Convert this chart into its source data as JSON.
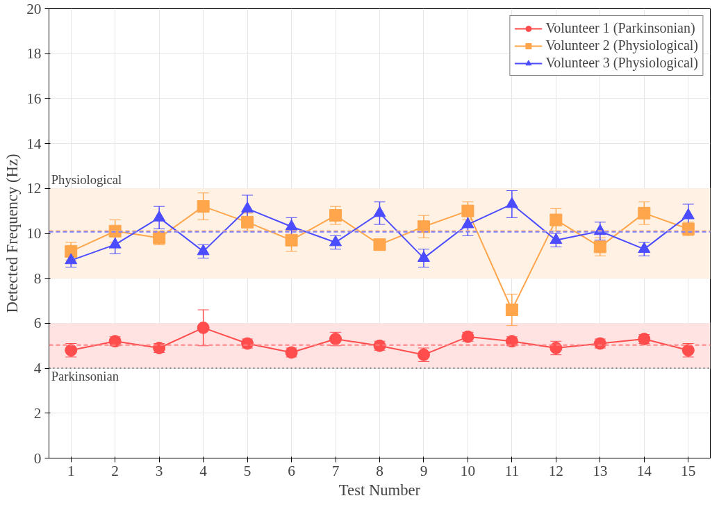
{
  "chart_data": {
    "type": "line",
    "xlabel": "Test Number",
    "ylabel": "Detected Frequency (Hz)",
    "x": [
      1,
      2,
      3,
      4,
      5,
      6,
      7,
      8,
      9,
      10,
      11,
      12,
      13,
      14,
      15
    ],
    "xlim": [
      0.5,
      15.5
    ],
    "xticks": [
      1,
      2,
      3,
      4,
      5,
      6,
      7,
      8,
      9,
      10,
      11,
      12,
      13,
      14,
      15
    ],
    "ylim": [
      0,
      20
    ],
    "yticks": [
      0,
      2,
      4,
      6,
      8,
      10,
      12,
      14,
      16,
      18,
      20
    ],
    "grid": true,
    "legend": "top right",
    "line_style": "solid",
    "series": [
      {
        "name": "Volunteer 1 (Parkinsonian)",
        "color": "#ff4c4c",
        "marker": "circle",
        "values": [
          4.8,
          5.2,
          4.9,
          5.8,
          5.1,
          4.7,
          5.3,
          5.0,
          4.6,
          5.4,
          5.2,
          4.9,
          5.1,
          5.3,
          4.8
        ],
        "errors": [
          0.3,
          0.2,
          0.2,
          0.8,
          0.2,
          0.2,
          0.3,
          0.2,
          0.3,
          0.2,
          0.2,
          0.3,
          0.2,
          0.2,
          0.3
        ]
      },
      {
        "name": "Volunteer 2 (Physiological)",
        "color": "#ffa64c",
        "marker": "square",
        "values": [
          9.2,
          10.1,
          9.8,
          11.2,
          10.5,
          9.7,
          10.8,
          9.5,
          10.3,
          11.0,
          6.6,
          10.6,
          9.4,
          10.9,
          10.2
        ],
        "errors": [
          0.4,
          0.5,
          0.3,
          0.6,
          0.4,
          0.5,
          0.4,
          0.2,
          0.5,
          0.4,
          0.7,
          0.5,
          0.4,
          0.5,
          0.3
        ]
      },
      {
        "name": "Volunteer 3 (Physiological)",
        "color": "#4c4cff",
        "marker": "triangle",
        "values": [
          8.8,
          9.5,
          10.7,
          9.2,
          11.1,
          10.3,
          9.6,
          10.9,
          8.9,
          10.4,
          11.3,
          9.7,
          10.1,
          9.3,
          10.8
        ],
        "errors": [
          0.3,
          0.4,
          0.5,
          0.3,
          0.6,
          0.4,
          0.3,
          0.5,
          0.4,
          0.5,
          0.6,
          0.3,
          0.4,
          0.3,
          0.5
        ]
      }
    ],
    "bands": [
      {
        "axis": "y",
        "from": 8,
        "to": 12,
        "label": "Physiological",
        "color": "#fff1e4"
      },
      {
        "axis": "y",
        "from": 4,
        "to": 6,
        "label": "Parkinsonian",
        "color": "#ffe3e3"
      }
    ],
    "ref_lines": [
      {
        "axis": "y",
        "value": 5.03,
        "color": "#ff8080",
        "line_style": "dashed"
      },
      {
        "axis": "y",
        "value": 10.11,
        "color": "#ffb870",
        "line_style": "dashed"
      },
      {
        "axis": "y",
        "value": 10.07,
        "color": "#8080ff",
        "line_style": "dashed"
      },
      {
        "axis": "y",
        "value": 4,
        "color": "#808080",
        "line_style": "dotted"
      }
    ]
  }
}
